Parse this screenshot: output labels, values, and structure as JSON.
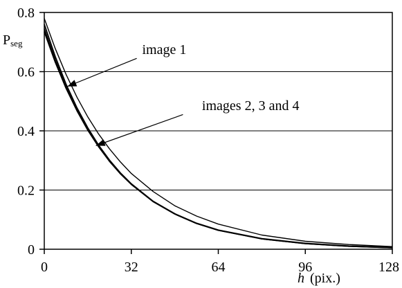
{
  "chart_data": {
    "type": "line",
    "title": "",
    "ylabel": "P",
    "ylabel_sub": "seg",
    "xlabel_italic": "h",
    "xlabel_rest": "(pix.)",
    "xlim": [
      0,
      128
    ],
    "ylim": [
      0,
      0.8
    ],
    "x_ticks": [
      0,
      32,
      64,
      96,
      128
    ],
    "x_tick_labels": [
      "0",
      "32",
      "64",
      "96",
      "128"
    ],
    "y_ticks": [
      0,
      0.2,
      0.4,
      0.6,
      0.8
    ],
    "y_tick_labels": [
      "0",
      "0.2",
      "0.4",
      "0.6",
      "0.8"
    ],
    "grid": "horizontal",
    "legend": "none",
    "series": [
      {
        "name": "image 1",
        "x": [
          0,
          4,
          8,
          12,
          16,
          20,
          24,
          28,
          32,
          40,
          48,
          56,
          64,
          80,
          96,
          112,
          128
        ],
        "y": [
          0.78,
          0.679,
          0.591,
          0.514,
          0.447,
          0.389,
          0.339,
          0.295,
          0.256,
          0.195,
          0.147,
          0.112,
          0.085,
          0.048,
          0.027,
          0.016,
          0.009
        ]
      },
      {
        "name": "images 2, 3 and 4 (a)",
        "x": [
          0,
          4,
          8,
          12,
          16,
          20,
          24,
          28,
          32,
          40,
          48,
          56,
          64,
          80,
          96,
          112,
          128
        ],
        "y": [
          0.76,
          0.652,
          0.558,
          0.478,
          0.41,
          0.351,
          0.301,
          0.258,
          0.221,
          0.162,
          0.119,
          0.087,
          0.064,
          0.035,
          0.019,
          0.01,
          0.005
        ]
      },
      {
        "name": "images 2, 3 and 4 (b)",
        "x": [
          0,
          4,
          8,
          12,
          16,
          20,
          24,
          28,
          32,
          40,
          48,
          56,
          64,
          80,
          96,
          112,
          128
        ],
        "y": [
          0.745,
          0.64,
          0.549,
          0.471,
          0.404,
          0.347,
          0.297,
          0.255,
          0.219,
          0.161,
          0.119,
          0.087,
          0.064,
          0.035,
          0.019,
          0.01,
          0.005
        ]
      },
      {
        "name": "images 2, 3 and 4 (c)",
        "x": [
          0,
          4,
          8,
          12,
          16,
          20,
          24,
          28,
          32,
          40,
          48,
          56,
          64,
          80,
          96,
          112,
          128
        ],
        "y": [
          0.735,
          0.633,
          0.544,
          0.468,
          0.402,
          0.346,
          0.297,
          0.256,
          0.22,
          0.162,
          0.12,
          0.088,
          0.065,
          0.036,
          0.02,
          0.011,
          0.006
        ]
      }
    ],
    "annotations": [
      {
        "text": "image 1",
        "text_x": 36,
        "text_y": 0.66,
        "arrow_from": [
          34,
          0.645
        ],
        "arrow_to": [
          8.5,
          0.55
        ]
      },
      {
        "text": "images 2, 3 and 4",
        "text_x": 58,
        "text_y": 0.47,
        "arrow_from": [
          51,
          0.455
        ],
        "arrow_to": [
          19,
          0.35
        ]
      }
    ]
  }
}
